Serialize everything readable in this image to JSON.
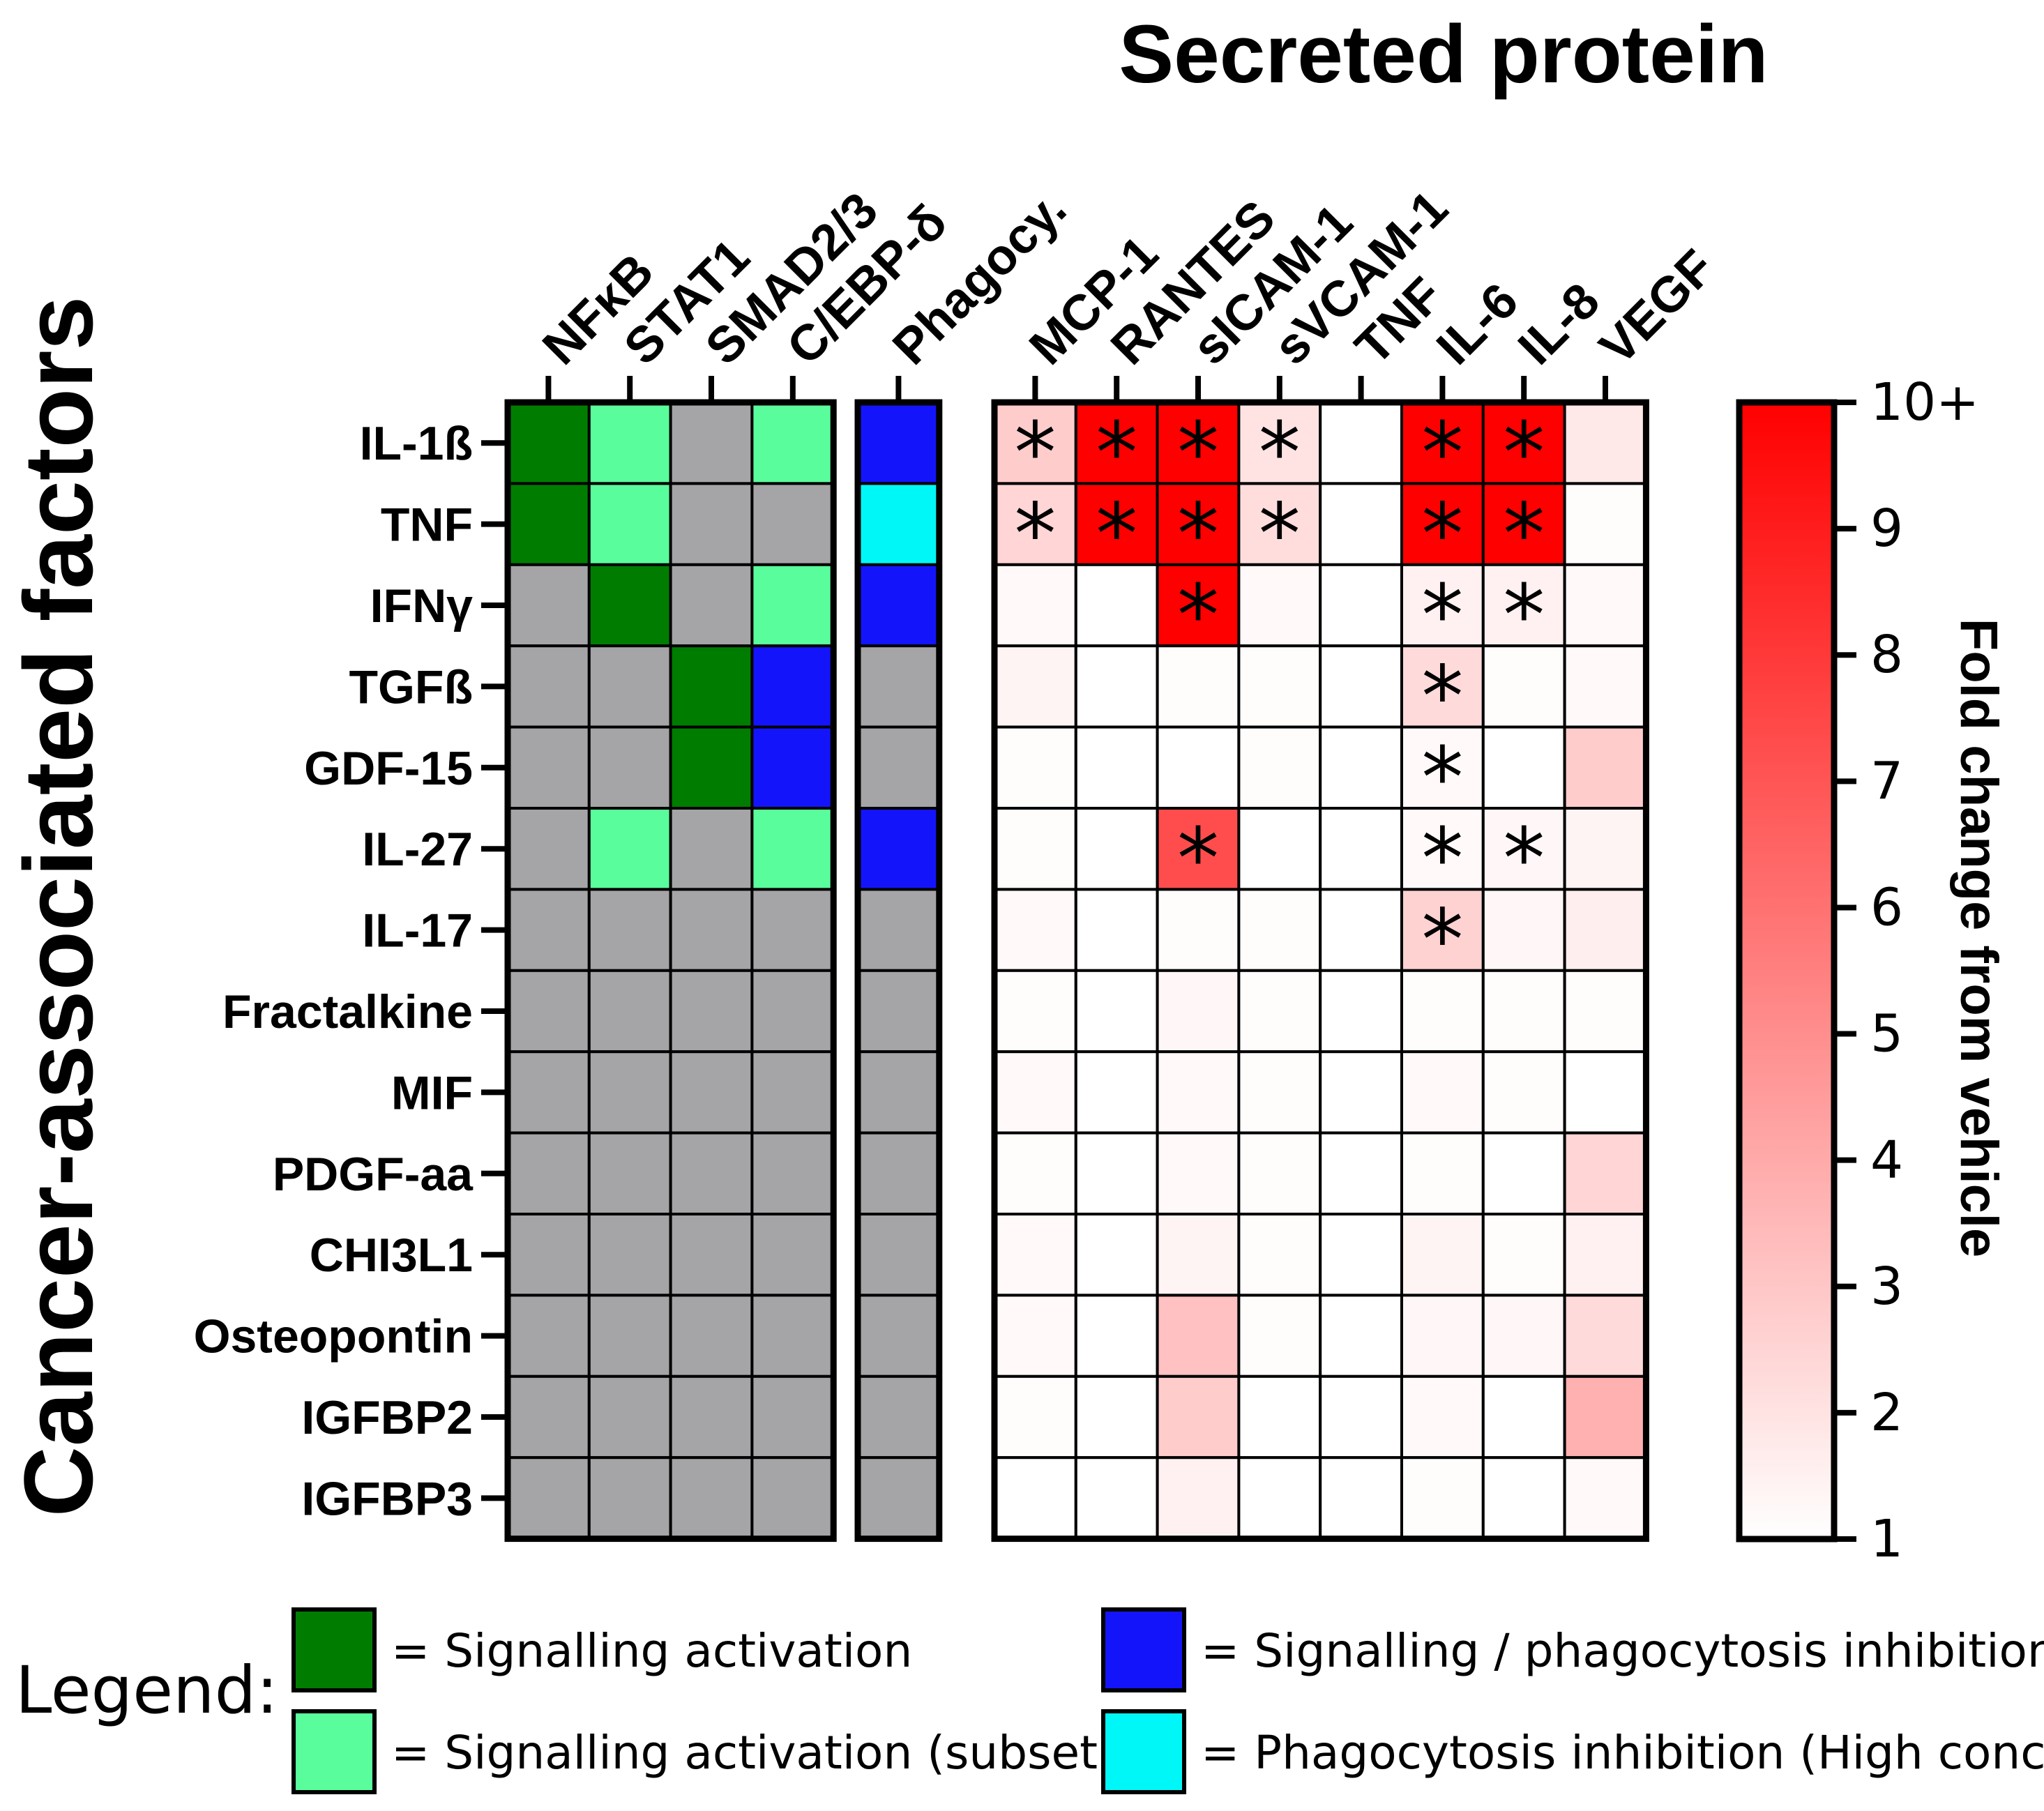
{
  "chart_data": {
    "type": "heatmap",
    "title": "Secreted protein",
    "ylabel": "Cancer-associated factors",
    "rows": [
      "IL-1ß",
      "TNF",
      "IFNγ",
      "TGFß",
      "GDF-15",
      "IL-27",
      "IL-17",
      "Fractalkine",
      "MIF",
      "PDGF-aa",
      "CHI3L1",
      "Osteopontin",
      "IGFBP2",
      "IGFBP3"
    ],
    "signalling_panel": {
      "columns": [
        "NFκB",
        "STAT1",
        "SMAD2/3",
        "C/EBP-δ"
      ],
      "states": [
        [
          "activation",
          "subset",
          "none",
          "subset"
        ],
        [
          "activation",
          "subset",
          "none",
          "none"
        ],
        [
          "none",
          "activation",
          "none",
          "subset"
        ],
        [
          "none",
          "none",
          "activation",
          "inhibition"
        ],
        [
          "none",
          "none",
          "activation",
          "inhibition"
        ],
        [
          "none",
          "subset",
          "none",
          "subset"
        ],
        [
          "none",
          "none",
          "none",
          "none"
        ],
        [
          "none",
          "none",
          "none",
          "none"
        ],
        [
          "none",
          "none",
          "none",
          "none"
        ],
        [
          "none",
          "none",
          "none",
          "none"
        ],
        [
          "none",
          "none",
          "none",
          "none"
        ],
        [
          "none",
          "none",
          "none",
          "none"
        ],
        [
          "none",
          "none",
          "none",
          "none"
        ],
        [
          "none",
          "none",
          "none",
          "none"
        ]
      ]
    },
    "phagocytosis_panel": {
      "columns": [
        "Phagocy."
      ],
      "states": [
        "inhibition",
        "high_conc",
        "inhibition",
        "none",
        "none",
        "inhibition",
        "none",
        "none",
        "none",
        "none",
        "none",
        "none",
        "none",
        "none"
      ]
    },
    "secreted_panel": {
      "columns": [
        "MCP-1",
        "RANTES",
        "sICAM-1",
        "sVCAM-1",
        "TNF",
        "IL-6",
        "IL-8",
        "VEGF"
      ],
      "values": [
        [
          2.8,
          10,
          10,
          2.0,
          1.0,
          10,
          10,
          1.8
        ],
        [
          2.5,
          10,
          10,
          2.2,
          1.0,
          10,
          10,
          1.1
        ],
        [
          1.2,
          1.0,
          10,
          1.2,
          1.0,
          1.5,
          1.5,
          1.2
        ],
        [
          1.4,
          1.0,
          1.1,
          1.1,
          1.0,
          2.3,
          1.1,
          1.2
        ],
        [
          1.1,
          1.0,
          1.0,
          1.1,
          1.0,
          1.2,
          1.0,
          2.8
        ],
        [
          1.1,
          1.0,
          7.3,
          1.0,
          1.0,
          1.2,
          1.3,
          1.4
        ],
        [
          1.2,
          1.0,
          1.1,
          1.1,
          1.0,
          2.6,
          1.3,
          1.6
        ],
        [
          1.1,
          1.0,
          1.3,
          1.1,
          1.0,
          1.1,
          1.1,
          1.1
        ],
        [
          1.2,
          1.0,
          1.2,
          1.1,
          1.0,
          1.2,
          1.1,
          1.0
        ],
        [
          1.1,
          1.0,
          1.2,
          1.1,
          1.0,
          1.1,
          1.0,
          2.5
        ],
        [
          1.2,
          1.0,
          1.4,
          1.1,
          1.0,
          1.4,
          1.1,
          1.5
        ],
        [
          1.2,
          1.0,
          3.2,
          1.1,
          1.0,
          1.3,
          1.3,
          2.3
        ],
        [
          1.1,
          1.0,
          2.8,
          1.0,
          1.0,
          1.2,
          1.0,
          3.8
        ],
        [
          1.0,
          1.0,
          1.5,
          1.0,
          1.0,
          1.1,
          1.0,
          1.2
        ]
      ],
      "significant": [
        [
          true,
          true,
          true,
          true,
          false,
          true,
          true,
          false
        ],
        [
          true,
          true,
          true,
          true,
          false,
          true,
          true,
          false
        ],
        [
          false,
          false,
          true,
          false,
          false,
          true,
          true,
          false
        ],
        [
          false,
          false,
          false,
          false,
          false,
          true,
          false,
          false
        ],
        [
          false,
          false,
          false,
          false,
          false,
          true,
          false,
          false
        ],
        [
          false,
          false,
          true,
          false,
          false,
          true,
          true,
          false
        ],
        [
          false,
          false,
          false,
          false,
          false,
          true,
          false,
          false
        ],
        [
          false,
          false,
          false,
          false,
          false,
          false,
          false,
          false
        ],
        [
          false,
          false,
          false,
          false,
          false,
          false,
          false,
          false
        ],
        [
          false,
          false,
          false,
          false,
          false,
          false,
          false,
          false
        ],
        [
          false,
          false,
          false,
          false,
          false,
          false,
          false,
          false
        ],
        [
          false,
          false,
          false,
          false,
          false,
          false,
          false,
          false
        ],
        [
          false,
          false,
          false,
          false,
          false,
          false,
          false,
          false
        ],
        [
          false,
          false,
          false,
          false,
          false,
          false,
          false,
          false
        ]
      ],
      "marker": "*"
    },
    "colorbar": {
      "label": "Fold change from vehicle",
      "range": [
        1,
        10
      ],
      "ticks": [
        "1",
        "2",
        "3",
        "4",
        "5",
        "6",
        "7",
        "8",
        "9",
        "10+"
      ],
      "color_low": "#ffffff",
      "color_high": "#ff0000"
    },
    "state_colors": {
      "activation": "#007d00",
      "subset": "#5afd9c",
      "inhibition": "#1414fb",
      "high_conc": "#00f7f7",
      "none": "#a5a5a8"
    },
    "legend": {
      "title": "Legend:",
      "items": [
        {
          "state": "activation",
          "label": "= Signalling activation"
        },
        {
          "state": "subset",
          "label": "= Signalling activation (subset)"
        },
        {
          "state": "inhibition",
          "label": "= Signalling / phagocytosis inhibition"
        },
        {
          "state": "high_conc",
          "label": "= Phagocytosis inhibition (High conc.)"
        }
      ]
    }
  }
}
